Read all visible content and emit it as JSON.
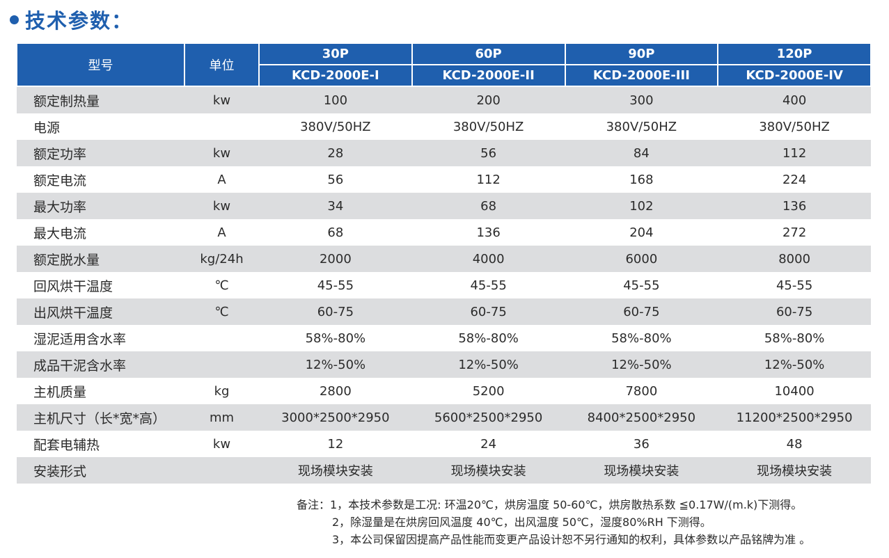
{
  "heading": {
    "title": "技术参数："
  },
  "table": {
    "header": {
      "model_label": "型号",
      "unit_label": "单位",
      "models": [
        {
          "power": "30P",
          "code": "KCD-2000E-I"
        },
        {
          "power": "60P",
          "code": "KCD-2000E-II"
        },
        {
          "power": "90P",
          "code": "KCD-2000E-III"
        },
        {
          "power": "120P",
          "code": "KCD-2000E-IV"
        }
      ]
    },
    "rows": [
      {
        "name": "额定制热量",
        "unit": "kw",
        "values": [
          "100",
          "200",
          "300",
          "400"
        ]
      },
      {
        "name": "电源",
        "unit": "",
        "values": [
          "380V/50HZ",
          "380V/50HZ",
          "380V/50HZ",
          "380V/50HZ"
        ]
      },
      {
        "name": "额定功率",
        "unit": "kw",
        "values": [
          "28",
          "56",
          "84",
          "112"
        ]
      },
      {
        "name": "额定电流",
        "unit": "A",
        "values": [
          "56",
          "112",
          "168",
          "224"
        ]
      },
      {
        "name": "最大功率",
        "unit": "kw",
        "values": [
          "34",
          "68",
          "102",
          "136"
        ]
      },
      {
        "name": "最大电流",
        "unit": "A",
        "values": [
          "68",
          "136",
          "204",
          "272"
        ]
      },
      {
        "name": "额定脱水量",
        "unit": "kg/24h",
        "values": [
          "2000",
          "4000",
          "6000",
          "8000"
        ]
      },
      {
        "name": "回风烘干温度",
        "unit": "℃",
        "values": [
          "45-55",
          "45-55",
          "45-55",
          "45-55"
        ]
      },
      {
        "name": "出风烘干温度",
        "unit": "℃",
        "values": [
          "60-75",
          "60-75",
          "60-75",
          "60-75"
        ]
      },
      {
        "name": "湿泥适用含水率",
        "unit": "",
        "values": [
          "58%-80%",
          "58%-80%",
          "58%-80%",
          "58%-80%"
        ]
      },
      {
        "name": "成品干泥含水率",
        "unit": "",
        "values": [
          "12%-50%",
          "12%-50%",
          "12%-50%",
          "12%-50%"
        ]
      },
      {
        "name": "主机质量",
        "unit": "kg",
        "values": [
          "2800",
          "5200",
          "7800",
          "10400"
        ]
      },
      {
        "name": "主机尺寸（长*宽*高）",
        "unit": "mm",
        "values": [
          "3000*2500*2950",
          "5600*2500*2950",
          "8400*2500*2950",
          "11200*2500*2950"
        ]
      },
      {
        "name": "配套电辅热",
        "unit": "kw",
        "values": [
          "12",
          "24",
          "36",
          "48"
        ]
      },
      {
        "name": "安装形式",
        "unit": "",
        "values": [
          "现场模块安装",
          "现场模块安装",
          "现场模块安装",
          "现场模块安装"
        ]
      }
    ]
  },
  "notes": [
    "备注：1，本技术参数是工况: 环温20℃，烘房温度 50-60℃，烘房散热系数 ≦0.17W/(m.k)下测得。",
    "2，除湿量是在烘房回风温度 40℃，出风温度 50℃，湿度80%RH 下测得。",
    "3，本公司保留因提高产品性能而变更产品设计恕不另行通知的权利，具体参数以产品铭牌为准 。"
  ],
  "colors": {
    "header_blue": "#1f5fae",
    "row_shade": "#dcdddf"
  }
}
